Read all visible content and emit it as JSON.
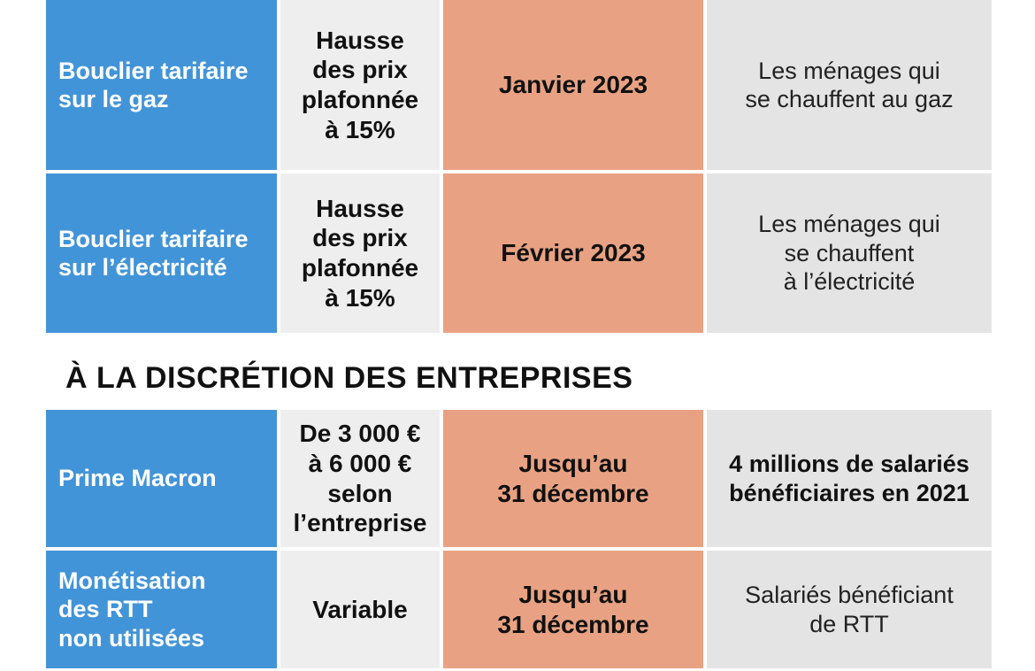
{
  "section_heading": "À LA DISCRÉTION DES ENTREPRISES",
  "rows": [
    {
      "measure": "Bouclier tarifaire\nsur le gaz",
      "amount": "Hausse\ndes prix\nplafonnée\nà 15%",
      "date": "Janvier 2023",
      "beneficiaries": "Les ménages qui\nse chauffent au gaz"
    },
    {
      "measure": "Bouclier tarifaire\nsur l’électricité",
      "amount": "Hausse\ndes prix\nplafonnée\nà 15%",
      "date": "Février 2023",
      "beneficiaries": "Les ménages qui\nse chauffent\nà l’électricité"
    },
    {
      "measure": "Prime Macron",
      "amount": "De 3 000 €\nà 6 000 €\nselon\nl’entreprise",
      "date": "Jusqu’au\n31 décembre",
      "beneficiaries": "4 millions de salariés\nbénéficiaires en 2021"
    },
    {
      "measure": "Monétisation\ndes RTT\nnon utilisées",
      "amount": "Variable",
      "date": "Jusqu’au\n31 décembre",
      "beneficiaries": "Salariés bénéficiant\nde RTT"
    }
  ],
  "colors": {
    "measure": "#4294d8",
    "amount": "#eeeeee",
    "date": "#e8a283",
    "beneficiaries": "#e4e4e4"
  }
}
